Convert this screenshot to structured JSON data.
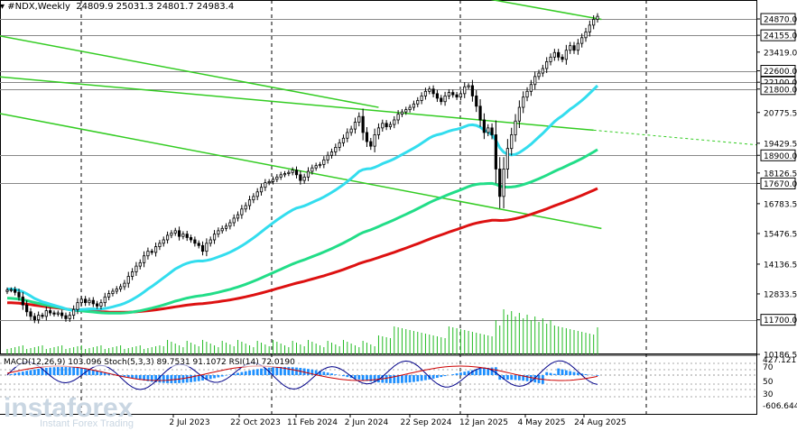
{
  "header": {
    "symbol_label": "#NDX,Weekly",
    "ohlc": "24809.9 25031.3 24801.7 24983.4"
  },
  "indicator_label": "MACD(12,26,9) 103.096 Stoch(5,3,3) 89.7531 91.1072 RSI(14) 72.0190",
  "watermark": {
    "brand": "instaforex",
    "tagline": "Instant Forex Trading"
  },
  "colors": {
    "candle": "#000000",
    "ema_fast": "#33ddee",
    "ema_mid": "#22dd88",
    "ema_slow": "#dd1111",
    "channel": "#33cc22",
    "volume": "#22bb22",
    "macd_hist": "#1e90ff",
    "osc_line": "#000088",
    "grid": "#777777"
  },
  "chart_data": {
    "type": "candlestick",
    "price_axis_labels": [
      "24870.0",
      "24155.0",
      "23419.0",
      "22600.0",
      "22100.0",
      "21800.0",
      "20775.5",
      "19429.5",
      "18900.0",
      "18126.5",
      "17670.0",
      "16783.5",
      "15476.5",
      "14136.5",
      "12833.5",
      "11700.0",
      "10186.5"
    ],
    "marked_levels": [
      "24870.0",
      "24155.0",
      "22600.0",
      "22100.0",
      "21800.0",
      "18900.0",
      "17670.0",
      "11700.0"
    ],
    "date_labels": [
      "2 Jul 2023",
      "22 Oct 2023",
      "11 Feb 2024",
      "2 Jun 2024",
      "22 Sep 2024",
      "12 Jan 2025",
      "4 May 2025",
      "24 Aug 2025"
    ],
    "ylim": [
      10186.5,
      25700
    ],
    "closes": [
      13000,
      13020,
      12900,
      12700,
      12350,
      12050,
      11850,
      11700,
      11900,
      11850,
      12100,
      12000,
      11950,
      12000,
      11880,
      11750,
      11900,
      12150,
      12450,
      12600,
      12450,
      12550,
      12400,
      12300,
      12450,
      12700,
      12850,
      12950,
      13050,
      13150,
      13300,
      13600,
      13800,
      14050,
      14200,
      14500,
      14700,
      14650,
      14900,
      15050,
      15200,
      15400,
      15500,
      15600,
      15350,
      15450,
      15300,
      15200,
      15050,
      14950,
      14700,
      15050,
      15200,
      15450,
      15600,
      15700,
      15800,
      15950,
      16150,
      16300,
      16550,
      16700,
      16950,
      17100,
      17300,
      17500,
      17700,
      17750,
      17850,
      17950,
      18050,
      18100,
      18150,
      18250,
      18050,
      17800,
      17950,
      18200,
      18350,
      18450,
      18500,
      18700,
      18900,
      19050,
      19250,
      19450,
      19650,
      19900,
      20050,
      20350,
      20600,
      19900,
      19500,
      19300,
      19800,
      20100,
      20300,
      20150,
      20250,
      20450,
      20700,
      20800,
      20900,
      21000,
      21150,
      21300,
      21500,
      21700,
      21800,
      21600,
      21400,
      21250,
      21500,
      21650,
      21550,
      21450,
      21600,
      21900,
      21950,
      21500,
      21050,
      20450,
      19900,
      20100,
      19800,
      18300,
      17100,
      18300,
      19200,
      19800,
      20400,
      21000,
      21450,
      21700,
      22000,
      22350,
      22500,
      22700,
      23000,
      23200,
      23400,
      23200,
      23100,
      23500,
      23700,
      23500,
      23800,
      24050,
      24300,
      24600,
      24850,
      24983.4
    ],
    "ema_fast_values": {
      "start": 13050,
      "end": 21950
    },
    "ema_mid_values": {
      "start": 12650,
      "end": 19150
    },
    "ema_slow_values": {
      "start": 12450,
      "end": 17450
    }
  }
}
